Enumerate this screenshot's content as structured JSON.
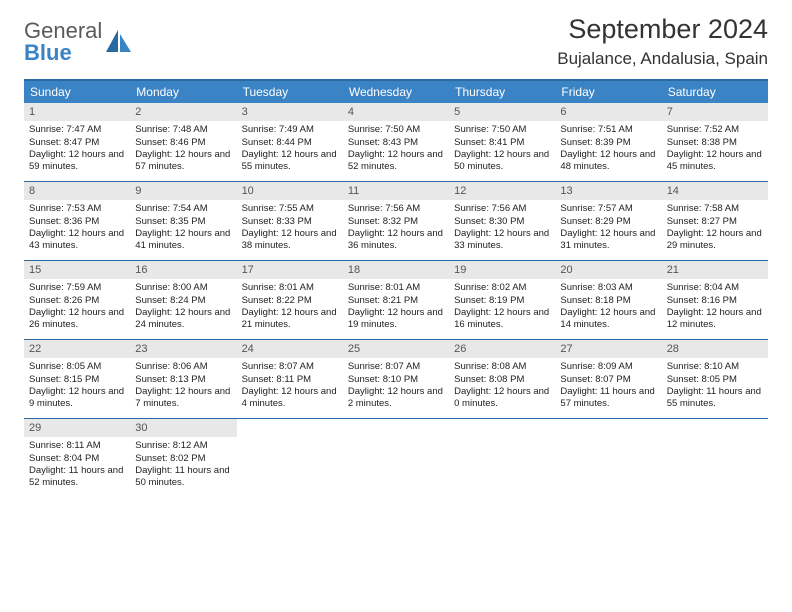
{
  "brand": {
    "general": "General",
    "blue": "Blue"
  },
  "title": "September 2024",
  "location": "Bujalance, Andalusia, Spain",
  "colors": {
    "header_bg": "#3a83c4",
    "header_border": "#2b6aa0",
    "daynum_bg": "#e8e8e8",
    "logo_blue": "#3a83c4",
    "logo_gray": "#5a5a5a"
  },
  "day_labels": [
    "Sunday",
    "Monday",
    "Tuesday",
    "Wednesday",
    "Thursday",
    "Friday",
    "Saturday"
  ],
  "weeks": [
    [
      {
        "n": "1",
        "sunrise": "7:47 AM",
        "sunset": "8:47 PM",
        "daylight": "12 hours and 59 minutes."
      },
      {
        "n": "2",
        "sunrise": "7:48 AM",
        "sunset": "8:46 PM",
        "daylight": "12 hours and 57 minutes."
      },
      {
        "n": "3",
        "sunrise": "7:49 AM",
        "sunset": "8:44 PM",
        "daylight": "12 hours and 55 minutes."
      },
      {
        "n": "4",
        "sunrise": "7:50 AM",
        "sunset": "8:43 PM",
        "daylight": "12 hours and 52 minutes."
      },
      {
        "n": "5",
        "sunrise": "7:50 AM",
        "sunset": "8:41 PM",
        "daylight": "12 hours and 50 minutes."
      },
      {
        "n": "6",
        "sunrise": "7:51 AM",
        "sunset": "8:39 PM",
        "daylight": "12 hours and 48 minutes."
      },
      {
        "n": "7",
        "sunrise": "7:52 AM",
        "sunset": "8:38 PM",
        "daylight": "12 hours and 45 minutes."
      }
    ],
    [
      {
        "n": "8",
        "sunrise": "7:53 AM",
        "sunset": "8:36 PM",
        "daylight": "12 hours and 43 minutes."
      },
      {
        "n": "9",
        "sunrise": "7:54 AM",
        "sunset": "8:35 PM",
        "daylight": "12 hours and 41 minutes."
      },
      {
        "n": "10",
        "sunrise": "7:55 AM",
        "sunset": "8:33 PM",
        "daylight": "12 hours and 38 minutes."
      },
      {
        "n": "11",
        "sunrise": "7:56 AM",
        "sunset": "8:32 PM",
        "daylight": "12 hours and 36 minutes."
      },
      {
        "n": "12",
        "sunrise": "7:56 AM",
        "sunset": "8:30 PM",
        "daylight": "12 hours and 33 minutes."
      },
      {
        "n": "13",
        "sunrise": "7:57 AM",
        "sunset": "8:29 PM",
        "daylight": "12 hours and 31 minutes."
      },
      {
        "n": "14",
        "sunrise": "7:58 AM",
        "sunset": "8:27 PM",
        "daylight": "12 hours and 29 minutes."
      }
    ],
    [
      {
        "n": "15",
        "sunrise": "7:59 AM",
        "sunset": "8:26 PM",
        "daylight": "12 hours and 26 minutes."
      },
      {
        "n": "16",
        "sunrise": "8:00 AM",
        "sunset": "8:24 PM",
        "daylight": "12 hours and 24 minutes."
      },
      {
        "n": "17",
        "sunrise": "8:01 AM",
        "sunset": "8:22 PM",
        "daylight": "12 hours and 21 minutes."
      },
      {
        "n": "18",
        "sunrise": "8:01 AM",
        "sunset": "8:21 PM",
        "daylight": "12 hours and 19 minutes."
      },
      {
        "n": "19",
        "sunrise": "8:02 AM",
        "sunset": "8:19 PM",
        "daylight": "12 hours and 16 minutes."
      },
      {
        "n": "20",
        "sunrise": "8:03 AM",
        "sunset": "8:18 PM",
        "daylight": "12 hours and 14 minutes."
      },
      {
        "n": "21",
        "sunrise": "8:04 AM",
        "sunset": "8:16 PM",
        "daylight": "12 hours and 12 minutes."
      }
    ],
    [
      {
        "n": "22",
        "sunrise": "8:05 AM",
        "sunset": "8:15 PM",
        "daylight": "12 hours and 9 minutes."
      },
      {
        "n": "23",
        "sunrise": "8:06 AM",
        "sunset": "8:13 PM",
        "daylight": "12 hours and 7 minutes."
      },
      {
        "n": "24",
        "sunrise": "8:07 AM",
        "sunset": "8:11 PM",
        "daylight": "12 hours and 4 minutes."
      },
      {
        "n": "25",
        "sunrise": "8:07 AM",
        "sunset": "8:10 PM",
        "daylight": "12 hours and 2 minutes."
      },
      {
        "n": "26",
        "sunrise": "8:08 AM",
        "sunset": "8:08 PM",
        "daylight": "12 hours and 0 minutes."
      },
      {
        "n": "27",
        "sunrise": "8:09 AM",
        "sunset": "8:07 PM",
        "daylight": "11 hours and 57 minutes."
      },
      {
        "n": "28",
        "sunrise": "8:10 AM",
        "sunset": "8:05 PM",
        "daylight": "11 hours and 55 minutes."
      }
    ],
    [
      {
        "n": "29",
        "sunrise": "8:11 AM",
        "sunset": "8:04 PM",
        "daylight": "11 hours and 52 minutes."
      },
      {
        "n": "30",
        "sunrise": "8:12 AM",
        "sunset": "8:02 PM",
        "daylight": "11 hours and 50 minutes."
      },
      null,
      null,
      null,
      null,
      null
    ]
  ],
  "labels": {
    "sunrise_prefix": "Sunrise: ",
    "sunset_prefix": "Sunset: ",
    "daylight_prefix": "Daylight: "
  }
}
